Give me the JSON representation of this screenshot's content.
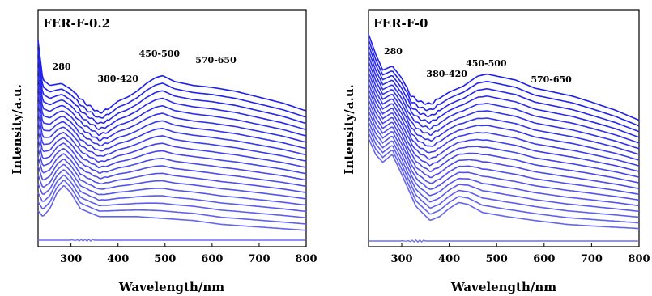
{
  "chart_data": [
    {
      "type": "line",
      "title": "FER-F-0.2",
      "xlabel": "Wavelength/nm",
      "ylabel": "Intensity/a.u.",
      "xlim": [
        230,
        800
      ],
      "xticks": [
        "300",
        "400",
        "500",
        "600",
        "700",
        "800"
      ],
      "annotations": [
        {
          "text": "280",
          "x": 280
        },
        {
          "text": "380-420",
          "x": 400
        },
        {
          "text": "450-500",
          "x": 488
        },
        {
          "text": "570-650",
          "x": 608
        }
      ],
      "line_count": 20,
      "top_curve": {
        "x": [
          230,
          240,
          255,
          280,
          300,
          330,
          360,
          380,
          400,
          420,
          440,
          460,
          480,
          495,
          520,
          560,
          600,
          650,
          700,
          750,
          800
        ],
        "y": [
          1.0,
          0.8,
          0.77,
          0.78,
          0.75,
          0.68,
          0.63,
          0.65,
          0.69,
          0.71,
          0.74,
          0.78,
          0.81,
          0.82,
          0.79,
          0.77,
          0.76,
          0.74,
          0.71,
          0.68,
          0.64
        ]
      },
      "bottom_curve": {
        "x": [
          230,
          240,
          255,
          270,
          285,
          300,
          320,
          360,
          400,
          440,
          500,
          560,
          620,
          680,
          740,
          800
        ],
        "y": [
          0.13,
          0.1,
          0.14,
          0.22,
          0.26,
          0.22,
          0.14,
          0.1,
          0.1,
          0.1,
          0.09,
          0.08,
          0.06,
          0.05,
          0.04,
          0.03
        ]
      },
      "baseline_y": 0.0
    },
    {
      "type": "line",
      "title": "FER-F-0",
      "xlabel": "Wavelength/nm",
      "ylabel": "Intensity/a.u.",
      "xlim": [
        230,
        800
      ],
      "xticks": [
        "300",
        "400",
        "500",
        "600",
        "700",
        "800"
      ],
      "annotations": [
        {
          "text": "280",
          "x": 282
        },
        {
          "text": "380-420",
          "x": 395
        },
        {
          "text": "450-500",
          "x": 478
        },
        {
          "text": "570-650",
          "x": 615
        }
      ],
      "line_count": 20,
      "top_curve": {
        "x": [
          230,
          245,
          260,
          280,
          300,
          320,
          340,
          360,
          380,
          400,
          430,
          460,
          480,
          500,
          540,
          580,
          620,
          660,
          700,
          750,
          800
        ],
        "y": [
          1.0,
          0.9,
          0.82,
          0.84,
          0.78,
          0.69,
          0.66,
          0.65,
          0.68,
          0.71,
          0.74,
          0.79,
          0.8,
          0.79,
          0.77,
          0.73,
          0.71,
          0.69,
          0.66,
          0.62,
          0.57
        ]
      },
      "bottom_curve": {
        "x": [
          230,
          245,
          260,
          280,
          300,
          330,
          360,
          380,
          400,
          420,
          440,
          470,
          520,
          580,
          650,
          720,
          800
        ],
        "y": [
          0.48,
          0.4,
          0.36,
          0.4,
          0.3,
          0.14,
          0.07,
          0.09,
          0.13,
          0.16,
          0.15,
          0.11,
          0.09,
          0.07,
          0.05,
          0.04,
          0.03
        ]
      },
      "baseline_y": 0.0
    }
  ]
}
